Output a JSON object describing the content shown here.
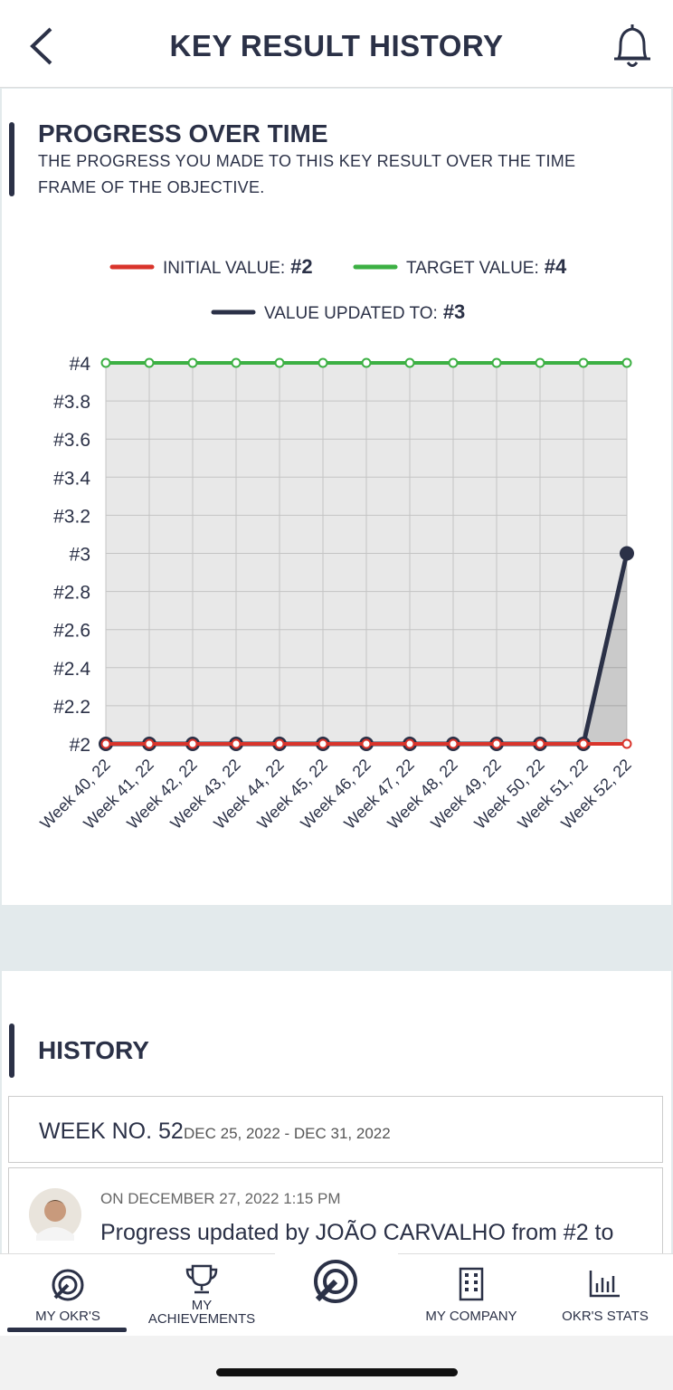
{
  "header": {
    "title": "KEY RESULT HISTORY"
  },
  "progress": {
    "title": "PROGRESS OVER TIME",
    "subtitle": "THE PROGRESS YOU MADE TO THIS KEY RESULT OVER THE TIME FRAME OF THE OBJECTIVE."
  },
  "chart_data": {
    "type": "line",
    "categories": [
      "Week 40, 22",
      "Week 41, 22",
      "Week 42, 22",
      "Week 43, 22",
      "Week 44, 22",
      "Week 45, 22",
      "Week 46, 22",
      "Week 47, 22",
      "Week 48, 22",
      "Week 49, 22",
      "Week 50, 22",
      "Week 51, 22",
      "Week 52, 22"
    ],
    "series": [
      {
        "name": "VALUE UPDATED TO:",
        "legend_value": "#3",
        "color": "#2b3147",
        "values": [
          2,
          2,
          2,
          2,
          2,
          2,
          2,
          2,
          2,
          2,
          2,
          2,
          3
        ]
      },
      {
        "name": "INITIAL VALUE:",
        "legend_value": "#2",
        "color": "#d9342b",
        "values": [
          2,
          2,
          2,
          2,
          2,
          2,
          2,
          2,
          2,
          2,
          2,
          2,
          2
        ]
      },
      {
        "name": "TARGET VALUE:",
        "legend_value": "#4",
        "color": "#3cb043",
        "values": [
          4,
          4,
          4,
          4,
          4,
          4,
          4,
          4,
          4,
          4,
          4,
          4,
          4
        ]
      }
    ],
    "ylim": [
      2,
      4
    ],
    "yticks": [
      {
        "value": 2,
        "label": "#2"
      },
      {
        "value": 2.2,
        "label": "#2.2"
      },
      {
        "value": 2.4,
        "label": "#2.4"
      },
      {
        "value": 2.6,
        "label": "#2.6"
      },
      {
        "value": 2.8,
        "label": "#2.8"
      },
      {
        "value": 3,
        "label": "#3"
      },
      {
        "value": 3.2,
        "label": "#3.2"
      },
      {
        "value": 3.4,
        "label": "#3.4"
      },
      {
        "value": 3.6,
        "label": "#3.6"
      },
      {
        "value": 3.8,
        "label": "#3.8"
      },
      {
        "value": 4,
        "label": "#4"
      }
    ],
    "grid": true
  },
  "history": {
    "title": "HISTORY",
    "week": "WEEK NO. 52",
    "range": "DEC 25, 2022 - DEC 31, 2022",
    "entry": {
      "date": "ON DECEMBER 27, 2022 1:15 PM",
      "text": "Progress updated by",
      "user": "JOÃO CARVALHO",
      "change": "from #2 to"
    }
  },
  "nav": {
    "my_okrs": "MY OKR'S",
    "my": "MY",
    "achievements": "ACHIEVEMENTS",
    "my_company": "MY COMPANY",
    "stats": "OKR'S STATS"
  }
}
